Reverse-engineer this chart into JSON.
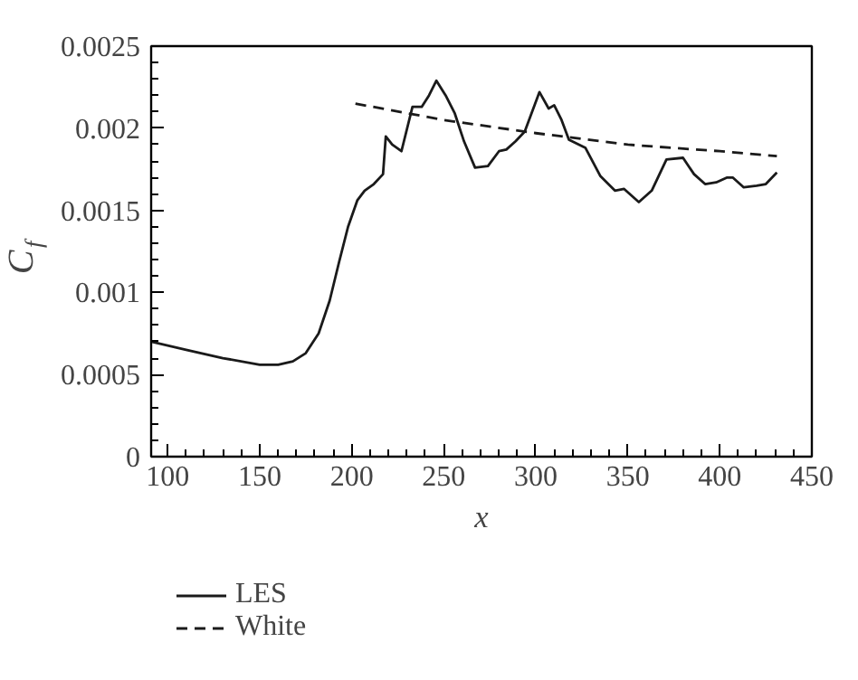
{
  "chart_data": {
    "type": "line",
    "xlabel": "x",
    "ylabel": "C$_{f}$",
    "xlim": [
      91,
      450
    ],
    "ylim": [
      0,
      0.0025
    ],
    "xticks": [
      100,
      150,
      200,
      250,
      300,
      350,
      400,
      450
    ],
    "yticks": [
      0,
      0.0005,
      0.001,
      0.0015,
      0.002,
      0.0025
    ],
    "grid": false,
    "legend": "bottom left",
    "marker": "none",
    "series": [
      {
        "name": "LES",
        "color": "#1a1a1a",
        "line_style": "solid",
        "x": [
          91,
          110,
          130,
          150,
          160,
          168,
          175,
          182,
          188,
          193,
          198,
          203,
          207,
          212,
          217,
          218.5,
          222,
          227,
          233,
          238,
          242,
          246,
          251,
          256,
          261,
          267,
          274,
          280,
          284,
          289,
          294,
          302,
          307,
          310,
          314,
          318,
          327,
          335,
          343,
          348,
          356,
          363,
          371,
          380,
          386,
          392,
          398,
          404,
          407,
          413,
          420,
          425,
          431
        ],
        "values": [
          0.0007,
          0.00065,
          0.0006,
          0.00056,
          0.00056,
          0.00058,
          0.00063,
          0.00075,
          0.00095,
          0.00118,
          0.0014,
          0.00156,
          0.00162,
          0.00166,
          0.00172,
          0.00195,
          0.0019,
          0.00186,
          0.00213,
          0.00213,
          0.0022,
          0.00229,
          0.0022,
          0.00209,
          0.00192,
          0.00176,
          0.00177,
          0.00186,
          0.00187,
          0.00192,
          0.00198,
          0.00222,
          0.00212,
          0.00214,
          0.00205,
          0.00193,
          0.00188,
          0.00171,
          0.00162,
          0.00163,
          0.00155,
          0.00162,
          0.00181,
          0.00182,
          0.00172,
          0.00166,
          0.00167,
          0.0017,
          0.0017,
          0.00164,
          0.00165,
          0.00166,
          0.00173
        ]
      },
      {
        "name": "White",
        "color": "#1a1a1a",
        "line_style": "dashed",
        "x": [
          202,
          250,
          300,
          350,
          400,
          431
        ],
        "values": [
          0.00215,
          0.00205,
          0.00197,
          0.0019,
          0.00186,
          0.00183
        ]
      }
    ]
  }
}
